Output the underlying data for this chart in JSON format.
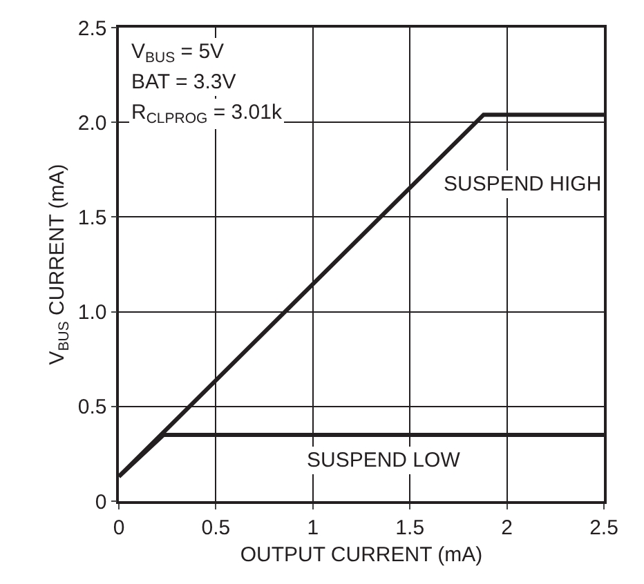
{
  "chart_data": {
    "type": "line",
    "xlabel": "OUTPUT CURRENT (mA)",
    "ylabel": "V$_{BUS}$ CURRENT (mA)",
    "annotations": [
      "V$_{BUS}$ = 5V",
      "BAT = 3.3V",
      "R$_{CLPROG}$ = 3.01k"
    ],
    "series": [
      {
        "name": "SUSPEND HIGH",
        "color": "#231f20",
        "x": [
          0,
          1.88,
          2.5
        ],
        "values": [
          0.13,
          2.04,
          2.04
        ]
      },
      {
        "name": "SUSPEND LOW",
        "color": "#231f20",
        "x": [
          0,
          0.23,
          2.5
        ],
        "values": [
          0.13,
          0.35,
          0.35
        ]
      }
    ],
    "xlim": [
      0,
      2.5
    ],
    "xticks": [
      0,
      0.5,
      1,
      1.5,
      2,
      2.5
    ],
    "ylim": [
      0,
      2.5
    ],
    "yticks": [
      0,
      {
        "value": 0.5,
        "label": "0.5"
      },
      {
        "value": 1,
        "label": "1.0"
      },
      {
        "value": 1.5,
        "label": "1.5"
      },
      {
        "value": 2,
        "label": "2.0"
      },
      {
        "value": 2.5,
        "label": "2.5"
      }
    ],
    "grid": true,
    "legend": false,
    "marker": "none",
    "line_style": "solid"
  }
}
